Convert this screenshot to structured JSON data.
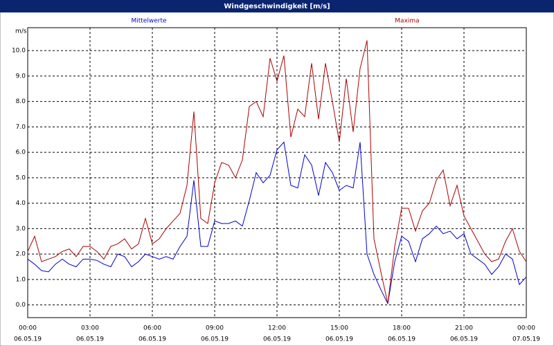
{
  "chart_data": {
    "type": "line",
    "title": "Windgeschwindigkeit [m/s]",
    "ylabel": "m/s",
    "x": [
      0,
      20,
      40,
      60,
      80,
      100,
      120,
      140,
      160,
      180,
      200,
      220,
      240,
      260,
      280,
      300,
      320,
      340,
      360,
      380,
      400,
      420,
      440,
      460,
      480,
      500,
      520,
      540,
      560,
      580,
      600,
      620,
      640,
      660,
      680,
      700,
      720,
      740,
      760,
      780,
      800,
      820,
      840,
      860,
      880,
      900,
      920,
      940,
      960,
      980,
      1000,
      1020,
      1040,
      1060,
      1080,
      1100,
      1120,
      1140,
      1160,
      1180,
      1200,
      1220,
      1240,
      1260,
      1280,
      1300,
      1320,
      1340,
      1360,
      1380,
      1400,
      1420,
      1440
    ],
    "series": [
      {
        "name": "Mittelwerte",
        "color": "#0000cc",
        "values": [
          1.8,
          1.6,
          1.35,
          1.3,
          1.6,
          1.8,
          1.6,
          1.5,
          1.8,
          1.8,
          1.75,
          1.6,
          1.5,
          2.0,
          1.9,
          1.5,
          1.7,
          2.0,
          1.9,
          1.8,
          1.9,
          1.8,
          2.3,
          2.7,
          4.9,
          2.3,
          2.3,
          3.3,
          3.2,
          3.2,
          3.3,
          3.1,
          4.1,
          5.2,
          4.8,
          5.1,
          6.1,
          6.4,
          4.7,
          4.6,
          5.9,
          5.5,
          4.3,
          5.6,
          5.2,
          4.5,
          4.7,
          4.6,
          6.4,
          2.0,
          1.2,
          0.6,
          0.05,
          1.7,
          2.7,
          2.5,
          1.7,
          2.6,
          2.8,
          3.1,
          2.8,
          2.9,
          2.6,
          2.8,
          2.0,
          1.8,
          1.6,
          1.2,
          1.5,
          2.0,
          1.8,
          0.8,
          1.1
        ]
      },
      {
        "name": "Maxima",
        "color": "#aa0000",
        "values": [
          2.1,
          2.7,
          1.7,
          1.8,
          1.9,
          2.1,
          2.2,
          1.9,
          2.3,
          2.3,
          2.1,
          1.8,
          2.3,
          2.4,
          2.6,
          2.2,
          2.4,
          3.4,
          2.4,
          2.6,
          3.0,
          3.3,
          3.6,
          4.7,
          7.6,
          3.4,
          3.2,
          4.8,
          5.6,
          5.5,
          5.0,
          5.7,
          7.8,
          8.0,
          7.4,
          9.7,
          8.8,
          9.8,
          6.6,
          7.7,
          7.4,
          9.5,
          7.3,
          9.5,
          8.0,
          6.4,
          8.9,
          6.8,
          9.3,
          10.4,
          2.6,
          1.3,
          0.05,
          2.3,
          3.8,
          3.8,
          2.9,
          3.7,
          4.0,
          4.9,
          5.3,
          3.9,
          4.7,
          3.5,
          3.0,
          2.5,
          2.0,
          1.7,
          1.8,
          2.5,
          3.0,
          2.1,
          1.7
        ]
      }
    ],
    "xlim": [
      0,
      1440
    ],
    "xticks": [
      {
        "value": 0,
        "label": [
          "00:00",
          "06.05.19"
        ]
      },
      {
        "value": 180,
        "label": [
          "03:00",
          "06.05.19"
        ]
      },
      {
        "value": 360,
        "label": [
          "06:00",
          "06.05.19"
        ]
      },
      {
        "value": 540,
        "label": [
          "09:00",
          "06.05.19"
        ]
      },
      {
        "value": 720,
        "label": [
          "12:00",
          "06.05.19"
        ]
      },
      {
        "value": 900,
        "label": [
          "15:00",
          "06.05.19"
        ]
      },
      {
        "value": 1080,
        "label": [
          "18:00",
          "06.05.19"
        ]
      },
      {
        "value": 1260,
        "label": [
          "21:00",
          "06.05.19"
        ]
      },
      {
        "value": 1440,
        "label": [
          "00:00",
          "07.05.19"
        ]
      }
    ],
    "ylim": [
      -0.5,
      10.9
    ],
    "yticks": [
      {
        "value": 0,
        "label": "0.0"
      },
      {
        "value": 1,
        "label": "1.0"
      },
      {
        "value": 2,
        "label": "2.0"
      },
      {
        "value": 3,
        "label": "3.0"
      },
      {
        "value": 4,
        "label": "4.0"
      },
      {
        "value": 5,
        "label": "5.0"
      },
      {
        "value": 6,
        "label": "6.0"
      },
      {
        "value": 7,
        "label": "7.0"
      },
      {
        "value": 8,
        "label": "8.0"
      },
      {
        "value": 9,
        "label": "9.0"
      },
      {
        "value": 10,
        "label": "10.0"
      }
    ],
    "grid": true
  }
}
